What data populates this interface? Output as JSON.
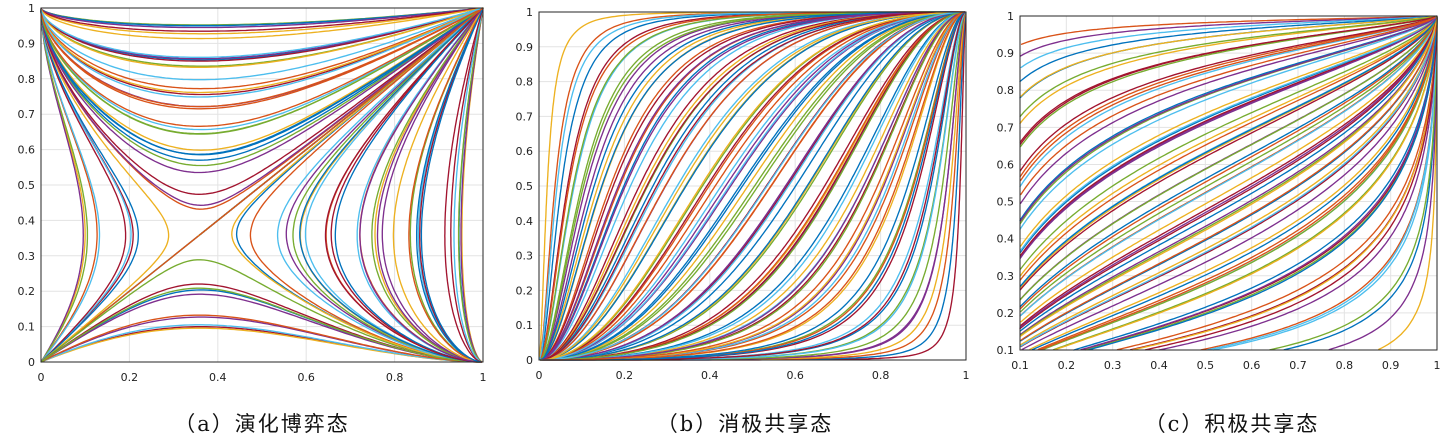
{
  "palette": [
    "#0072BD",
    "#D95319",
    "#EDB120",
    "#7E2F8E",
    "#77AC30",
    "#4DBEEE",
    "#A2142F"
  ],
  "chart_data": [
    {
      "type": "line",
      "caption": "（a）演化博弈态",
      "xlim": [
        0,
        1
      ],
      "ylim": [
        0,
        1
      ],
      "x_ticks": [
        "0",
        "0.2",
        "0.4",
        "0.6",
        "0.8",
        "1"
      ],
      "y_ticks": [
        "0",
        "0.1",
        "0.2",
        "0.3",
        "0.4",
        "0.5",
        "0.6",
        "0.7",
        "0.8",
        "0.9",
        "1"
      ],
      "grid": true,
      "dynamics": "saddle",
      "saddle_point": [
        0.36,
        0.36
      ],
      "stable_points": [
        [
          0,
          0
        ],
        [
          1,
          1
        ]
      ]
    },
    {
      "type": "line",
      "caption": "（b）消极共享态",
      "xlim": [
        0,
        1
      ],
      "ylim": [
        0,
        1
      ],
      "x_ticks": [
        "0",
        "0.2",
        "0.4",
        "0.6",
        "0.8",
        "1"
      ],
      "y_ticks": [
        "0",
        "0.1",
        "0.2",
        "0.3",
        "0.4",
        "0.5",
        "0.6",
        "0.7",
        "0.8",
        "0.9",
        "1"
      ],
      "grid": true,
      "dynamics": "sink",
      "stable_points": [
        [
          0,
          0
        ]
      ]
    },
    {
      "type": "line",
      "caption": "（c）积极共享态",
      "xlim": [
        0.1,
        1
      ],
      "ylim": [
        0.1,
        1
      ],
      "x_ticks": [
        "0.1",
        "0.2",
        "0.3",
        "0.4",
        "0.5",
        "0.6",
        "0.7",
        "0.8",
        "0.9",
        "1"
      ],
      "y_ticks": [
        "0.1",
        "0.2",
        "0.3",
        "0.4",
        "0.5",
        "0.6",
        "0.7",
        "0.8",
        "0.9",
        "1"
      ],
      "grid": true,
      "dynamics": "sink",
      "stable_points": [
        [
          1,
          1
        ]
      ]
    }
  ]
}
